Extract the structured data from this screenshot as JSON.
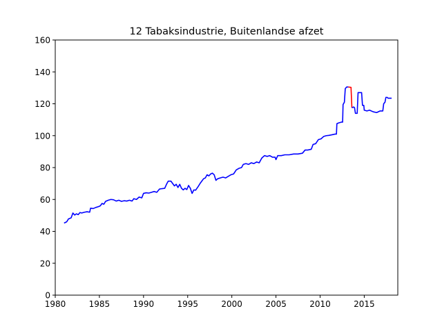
{
  "chart_data": {
    "type": "line",
    "title": "12 Tabaksindustrie, Buitenlandse afzet",
    "xlabel": "",
    "ylabel": "",
    "xlim": [
      1980,
      2018.8
    ],
    "ylim": [
      0,
      160
    ],
    "xticks": [
      1980,
      1985,
      1990,
      1995,
      2000,
      2005,
      2010,
      2015
    ],
    "yticks": [
      0,
      20,
      40,
      60,
      80,
      100,
      120,
      140,
      160
    ],
    "grid": false,
    "series": [
      {
        "color": "#0000ff",
        "points": [
          [
            1981.0,
            45.2
          ],
          [
            1981.3,
            46.0
          ],
          [
            1981.5,
            47.8
          ],
          [
            1981.8,
            48.5
          ],
          [
            1982.0,
            51.5
          ],
          [
            1982.2,
            50.2
          ],
          [
            1982.4,
            51.0
          ],
          [
            1982.6,
            50.5
          ],
          [
            1982.8,
            51.8
          ],
          [
            1983.0,
            51.5
          ],
          [
            1983.3,
            52.0
          ],
          [
            1983.6,
            52.3
          ],
          [
            1983.9,
            52.0
          ],
          [
            1984.0,
            54.5
          ],
          [
            1984.3,
            54.3
          ],
          [
            1984.6,
            55.0
          ],
          [
            1984.9,
            55.5
          ],
          [
            1985.1,
            56.0
          ],
          [
            1985.3,
            57.5
          ],
          [
            1985.5,
            57.0
          ],
          [
            1985.7,
            58.8
          ],
          [
            1986.0,
            59.5
          ],
          [
            1986.3,
            60.0
          ],
          [
            1986.6,
            59.8
          ],
          [
            1986.9,
            59.0
          ],
          [
            1987.2,
            59.5
          ],
          [
            1987.5,
            58.8
          ],
          [
            1987.8,
            59.2
          ],
          [
            1988.1,
            59.0
          ],
          [
            1988.4,
            59.5
          ],
          [
            1988.7,
            59.0
          ],
          [
            1988.9,
            60.5
          ],
          [
            1989.2,
            60.0
          ],
          [
            1989.5,
            61.5
          ],
          [
            1989.8,
            61.0
          ],
          [
            1990.0,
            63.8
          ],
          [
            1990.3,
            64.2
          ],
          [
            1990.6,
            64.0
          ],
          [
            1990.9,
            64.5
          ],
          [
            1991.2,
            65.0
          ],
          [
            1991.5,
            64.5
          ],
          [
            1991.8,
            66.5
          ],
          [
            1992.1,
            66.8
          ],
          [
            1992.4,
            67.0
          ],
          [
            1992.6,
            69.5
          ],
          [
            1992.8,
            71.5
          ],
          [
            1993.1,
            71.5
          ],
          [
            1993.3,
            70.0
          ],
          [
            1993.5,
            68.5
          ],
          [
            1993.7,
            69.5
          ],
          [
            1993.9,
            67.5
          ],
          [
            1994.1,
            69.5
          ],
          [
            1994.3,
            67.0
          ],
          [
            1994.5,
            66.0
          ],
          [
            1994.7,
            67.0
          ],
          [
            1994.9,
            66.2
          ],
          [
            1995.1,
            68.8
          ],
          [
            1995.3,
            67.0
          ],
          [
            1995.5,
            63.8
          ],
          [
            1995.7,
            66.0
          ],
          [
            1995.9,
            65.8
          ],
          [
            1996.2,
            68.2
          ],
          [
            1996.4,
            70.0
          ],
          [
            1996.6,
            71.5
          ],
          [
            1996.8,
            73.0
          ],
          [
            1997.0,
            73.5
          ],
          [
            1997.2,
            75.5
          ],
          [
            1997.4,
            74.8
          ],
          [
            1997.6,
            76.0
          ],
          [
            1997.8,
            76.5
          ],
          [
            1998.0,
            75.5
          ],
          [
            1998.2,
            72.0
          ],
          [
            1998.4,
            73.0
          ],
          [
            1998.7,
            73.5
          ],
          [
            1999.0,
            74.0
          ],
          [
            1999.3,
            73.5
          ],
          [
            1999.6,
            74.5
          ],
          [
            1999.9,
            75.5
          ],
          [
            2000.2,
            76.0
          ],
          [
            2000.5,
            78.5
          ],
          [
            2000.8,
            79.5
          ],
          [
            2001.1,
            80.0
          ],
          [
            2001.3,
            82.0
          ],
          [
            2001.6,
            82.5
          ],
          [
            2001.9,
            82.0
          ],
          [
            2002.2,
            83.0
          ],
          [
            2002.5,
            82.5
          ],
          [
            2002.8,
            83.5
          ],
          [
            2003.1,
            83.0
          ],
          [
            2003.4,
            86.0
          ],
          [
            2003.7,
            87.5
          ],
          [
            2004.0,
            87.0
          ],
          [
            2004.3,
            87.5
          ],
          [
            2004.6,
            86.5
          ],
          [
            2004.9,
            86.5
          ],
          [
            2005.0,
            85.0
          ],
          [
            2005.2,
            87.5
          ],
          [
            2005.6,
            87.5
          ],
          [
            2006.0,
            88.0
          ],
          [
            2006.5,
            88.0
          ],
          [
            2007.0,
            88.5
          ],
          [
            2007.5,
            88.5
          ],
          [
            2008.0,
            89.0
          ],
          [
            2008.3,
            91.0
          ],
          [
            2008.6,
            91.0
          ],
          [
            2009.0,
            91.5
          ],
          [
            2009.2,
            94.5
          ],
          [
            2009.5,
            95.0
          ],
          [
            2009.8,
            97.5
          ],
          [
            2010.1,
            98.0
          ],
          [
            2010.4,
            99.5
          ],
          [
            2010.7,
            100.0
          ],
          [
            2011.0,
            100.2
          ],
          [
            2011.3,
            100.5
          ],
          [
            2011.7,
            101.0
          ],
          [
            2011.85,
            101.0
          ],
          [
            2011.9,
            107.5
          ],
          [
            2012.1,
            108.0
          ],
          [
            2012.4,
            108.5
          ],
          [
            2012.55,
            108.5
          ],
          [
            2012.6,
            119.5
          ],
          [
            2012.75,
            121.0
          ],
          [
            2012.85,
            129.5
          ],
          [
            2013.0,
            130.5
          ],
          [
            2013.2,
            130.5
          ]
        ]
      },
      {
        "color": "#ff0000",
        "points": [
          [
            2013.2,
            130.5
          ],
          [
            2013.5,
            130.3
          ],
          [
            2013.6,
            117.5
          ]
        ]
      },
      {
        "color": "#0000ff",
        "points": [
          [
            2013.6,
            117.5
          ],
          [
            2013.8,
            118.0
          ],
          [
            2013.9,
            117.5
          ],
          [
            2014.0,
            114.0
          ],
          [
            2014.2,
            114.0
          ],
          [
            2014.3,
            127.0
          ],
          [
            2014.7,
            127.0
          ],
          [
            2014.8,
            119.0
          ],
          [
            2014.95,
            119.0
          ],
          [
            2015.0,
            116.0
          ],
          [
            2015.3,
            115.5
          ],
          [
            2015.6,
            116.0
          ],
          [
            2016.0,
            115.0
          ],
          [
            2016.4,
            114.5
          ],
          [
            2016.8,
            115.5
          ],
          [
            2017.1,
            115.5
          ],
          [
            2017.2,
            120.0
          ],
          [
            2017.35,
            121.0
          ],
          [
            2017.45,
            124.0
          ],
          [
            2017.6,
            124.0
          ],
          [
            2017.7,
            123.5
          ],
          [
            2018.1,
            123.5
          ]
        ]
      }
    ]
  }
}
